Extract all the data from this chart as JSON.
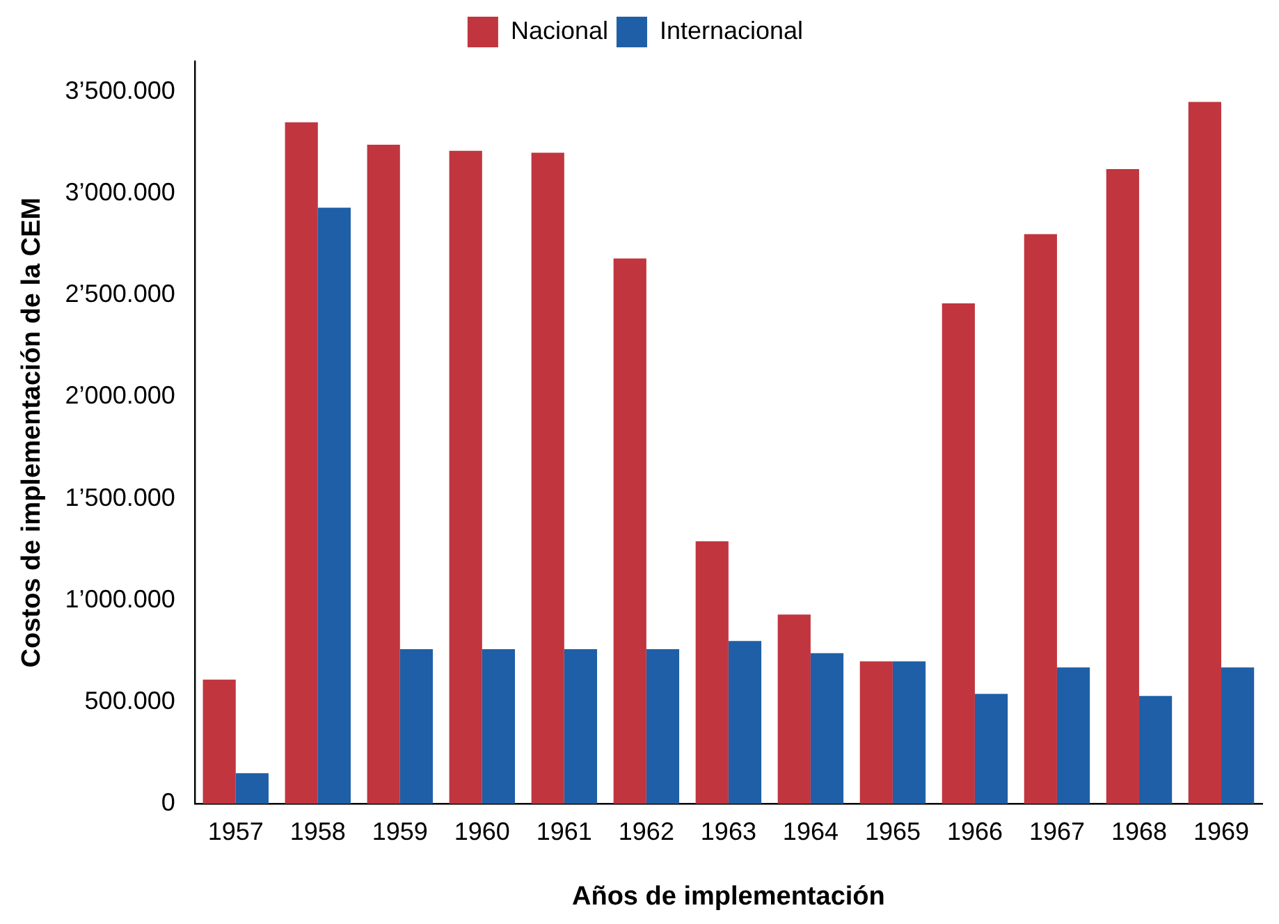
{
  "chart_data": {
    "type": "bar",
    "xlabel": "Años de implementación",
    "ylabel": "Costos de implementación de la CEM",
    "categories": [
      "1957",
      "1958",
      "1959",
      "1960",
      "1961",
      "1962",
      "1963",
      "1964",
      "1965",
      "1966",
      "1967",
      "1968",
      "1969"
    ],
    "series": [
      {
        "name": "Nacional",
        "color": "#c1353f",
        "values": [
          610000,
          3350000,
          3240000,
          3210000,
          3200000,
          2680000,
          1290000,
          930000,
          700000,
          2460000,
          2800000,
          3120000,
          3450000
        ]
      },
      {
        "name": "Internacional",
        "color": "#1f5fa7",
        "values": [
          150000,
          2930000,
          760000,
          760000,
          760000,
          760000,
          800000,
          740000,
          700000,
          540000,
          670000,
          530000,
          670000
        ]
      }
    ],
    "ylim": [
      0,
      3650000
    ],
    "yticks": [
      0,
      {
        "value": 500000,
        "label": "500.000"
      },
      {
        "value": 1000000,
        "label": "1’000.000"
      },
      {
        "value": 1500000,
        "label": "1’500.000"
      },
      {
        "value": 2000000,
        "label": "2’000.000"
      },
      {
        "value": 2500000,
        "label": "2’500.000"
      },
      {
        "value": 3000000,
        "label": "3’000.000"
      },
      {
        "value": 3500000,
        "label": "3’500.000"
      }
    ],
    "grid": false,
    "legend": "top"
  }
}
